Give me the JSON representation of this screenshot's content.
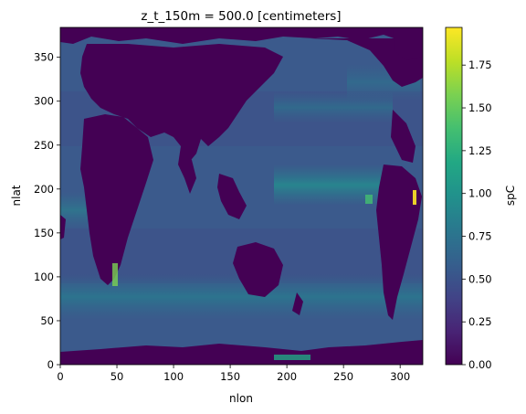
{
  "chart_data": {
    "type": "heatmap",
    "title": "z_t_150m = 500.0 [centimeters]",
    "xlabel": "nlon",
    "ylabel": "nlat",
    "xlim": [
      0,
      320
    ],
    "ylim": [
      0,
      384
    ],
    "xticks": [
      "0",
      "50",
      "100",
      "150",
      "200",
      "250",
      "300"
    ],
    "xtick_values": [
      0,
      50,
      100,
      150,
      200,
      250,
      300
    ],
    "yticks": [
      "0",
      "50",
      "100",
      "150",
      "200",
      "250",
      "300",
      "350"
    ],
    "ytick_values": [
      0,
      50,
      100,
      150,
      200,
      250,
      300,
      350
    ],
    "colorbar": {
      "label": "spC",
      "colormap": "viridis",
      "range": [
        0.0,
        1.97
      ],
      "ticks": [
        "0.00",
        "0.25",
        "0.50",
        "0.75",
        "1.00",
        "1.25",
        "1.50",
        "1.75"
      ],
      "tick_values": [
        0.0,
        0.25,
        0.5,
        0.75,
        1.0,
        1.25,
        1.5,
        1.75
      ]
    },
    "land_value": 0.0,
    "ocean_background_value": 0.45,
    "features": [
      {
        "name": "equatorial-pacific-band",
        "x": [
          195,
          310
        ],
        "y": [
          170,
          200
        ],
        "value": 0.85
      },
      {
        "name": "southern-ocean-band",
        "x": [
          0,
          320
        ],
        "y": [
          40,
          70
        ],
        "value": 0.6
      },
      {
        "name": "north-pacific-band",
        "x": [
          200,
          300
        ],
        "y": [
          270,
          310
        ],
        "value": 0.6
      },
      {
        "name": "benguela-upwelling",
        "x": [
          45,
          55
        ],
        "y": [
          85,
          110
        ],
        "value": 1.3
      },
      {
        "name": "peru-upwelling",
        "x": [
          298,
          305
        ],
        "y": [
          190,
          215
        ],
        "value": 1.6
      }
    ],
    "grid": false
  }
}
